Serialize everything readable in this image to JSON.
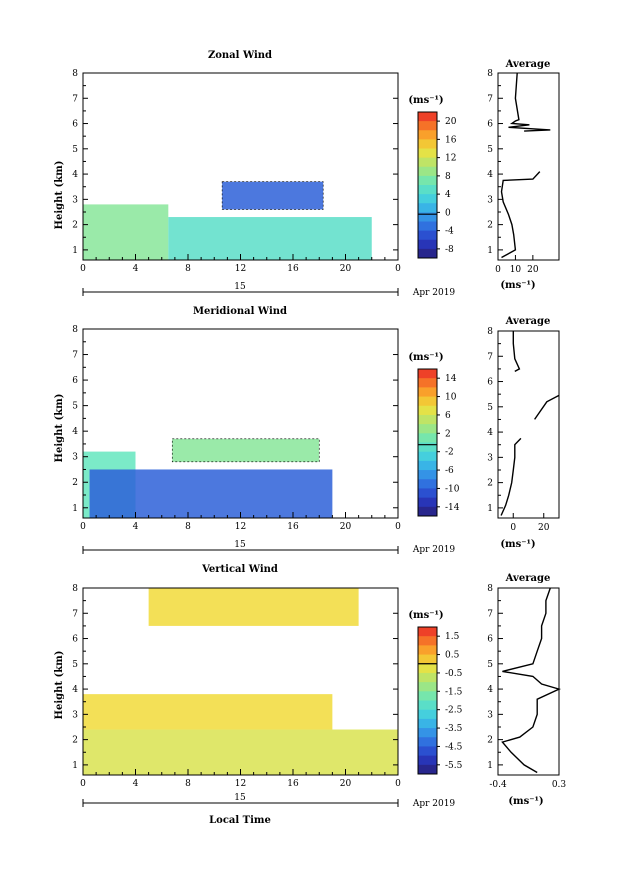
{
  "figure": {
    "date_label": "Apr 2019",
    "day_label": "15",
    "xlabel_bottom": "Local Time",
    "xticks": [
      "0",
      "4",
      "8",
      "12",
      "16",
      "20",
      "0"
    ],
    "yticks": [
      "1",
      "2",
      "3",
      "4",
      "5",
      "6",
      "7",
      "8"
    ],
    "unit_label": "(ms⁻¹)"
  },
  "chart_data": [
    {
      "type": "heatmap",
      "title": "Zonal Wind",
      "ylabel": "Height (km)",
      "xlim": [
        0,
        24
      ],
      "ylim": [
        0.6,
        8
      ],
      "colorbar": {
        "label": "(ms⁻¹)",
        "ticks": [
          20,
          16,
          12,
          8,
          4,
          0,
          -4,
          -8
        ],
        "range": [
          -10,
          22
        ]
      },
      "patches": [
        {
          "x": [
            10.6,
            18.3
          ],
          "y": [
            2.6,
            3.7
          ],
          "value": -4,
          "note": "contoured region"
        },
        {
          "x": [
            0.0,
            6.5
          ],
          "y": [
            0.6,
            2.8
          ],
          "value": 8
        },
        {
          "x": [
            6.5,
            22.0
          ],
          "y": [
            0.6,
            2.3
          ],
          "value": 5
        }
      ],
      "average": {
        "title": "Average",
        "xlabel": "(ms⁻¹)",
        "xticks": [
          "0",
          "10",
          "20"
        ],
        "xlim": [
          0,
          35
        ],
        "ylim": [
          0.6,
          8
        ],
        "profile": [
          {
            "x": 2,
            "y": 0.7
          },
          {
            "x": 10,
            "y": 1.0
          },
          {
            "x": 9,
            "y": 1.6
          },
          {
            "x": 8,
            "y": 2.0
          },
          {
            "x": 6,
            "y": 2.4
          },
          {
            "x": 3,
            "y": 2.9
          },
          {
            "x": 2,
            "y": 3.3
          },
          {
            "x": 3,
            "y": 3.75
          },
          {
            "x": 20,
            "y": 3.8
          },
          {
            "x": 24,
            "y": 4.1
          },
          {
            "x": null,
            "y": 4.3
          },
          {
            "x": 15,
            "y": 5.7
          },
          {
            "x": 30,
            "y": 5.75
          },
          {
            "x": 6,
            "y": 5.85
          },
          {
            "x": 18,
            "y": 5.95
          },
          {
            "x": 8,
            "y": 6.0
          },
          {
            "x": 10,
            "y": 6.1
          },
          {
            "x": 12,
            "y": 6.15
          },
          {
            "x": 10,
            "y": 7.0
          },
          {
            "x": 11,
            "y": 8.0
          }
        ]
      }
    },
    {
      "type": "heatmap",
      "title": "Meridional Wind",
      "ylabel": "Height (km)",
      "xlim": [
        0,
        24
      ],
      "ylim": [
        0.6,
        8
      ],
      "colorbar": {
        "label": "(ms⁻¹)",
        "ticks": [
          14,
          10,
          6,
          2,
          -2,
          -6,
          -10,
          -14
        ],
        "range": [
          -16,
          16
        ]
      },
      "patches": [
        {
          "x": [
            6.8,
            18.0
          ],
          "y": [
            2.8,
            3.7
          ],
          "value": 2,
          "note": "contoured region"
        },
        {
          "x": [
            0.0,
            4.0
          ],
          "y": [
            0.6,
            3.2
          ],
          "value": 0
        },
        {
          "x": [
            0.5,
            19.0
          ],
          "y": [
            0.6,
            2.5
          ],
          "value": -10
        }
      ],
      "average": {
        "title": "Average",
        "xlabel": "(ms⁻¹)",
        "xticks": [
          "0",
          "20"
        ],
        "xlim": [
          -10,
          30
        ],
        "ylim": [
          0.6,
          8
        ],
        "profile": [
          {
            "x": -8,
            "y": 0.7
          },
          {
            "x": -5,
            "y": 1.1
          },
          {
            "x": -3,
            "y": 1.5
          },
          {
            "x": -1,
            "y": 2.0
          },
          {
            "x": 0,
            "y": 2.5
          },
          {
            "x": 1,
            "y": 3.0
          },
          {
            "x": 1,
            "y": 3.5
          },
          {
            "x": 5,
            "y": 3.75
          },
          {
            "x": null,
            "y": 3.9
          },
          {
            "x": 14,
            "y": 4.5
          },
          {
            "x": 22,
            "y": 5.2
          },
          {
            "x": 30,
            "y": 5.45
          },
          {
            "x": null,
            "y": 5.6
          },
          {
            "x": 1,
            "y": 6.4
          },
          {
            "x": 4,
            "y": 6.5
          },
          {
            "x": 1,
            "y": 6.9
          },
          {
            "x": 0,
            "y": 7.5
          },
          {
            "x": 0,
            "y": 8.0
          }
        ]
      }
    },
    {
      "type": "heatmap",
      "title": "Vertical Wind",
      "ylabel": "Height (km)",
      "xlabel": "Local Time",
      "xlim": [
        0,
        24
      ],
      "ylim": [
        0.6,
        8
      ],
      "colorbar": {
        "label": "(ms⁻¹)",
        "ticks": [
          1.5,
          0.5,
          -0.5,
          -1.5,
          -2.5,
          -3.5,
          -4.5,
          -5.5
        ],
        "range": [
          -6,
          2
        ]
      },
      "patches": [
        {
          "x": [
            0.0,
            19.0
          ],
          "y": [
            2.4,
            3.8
          ],
          "value": 0.0
        },
        {
          "x": [
            0.0,
            24.0
          ],
          "y": [
            0.6,
            2.4
          ],
          "value": -0.4
        },
        {
          "x": [
            5.0,
            21.0
          ],
          "y": [
            6.5,
            8.0
          ],
          "value": 0.0
        }
      ],
      "average": {
        "title": "Average",
        "xlabel": "(ms⁻¹)",
        "xticks": [
          "-0.4",
          "0.3"
        ],
        "xlim": [
          -0.4,
          0.3
        ],
        "ylim": [
          0.6,
          8
        ],
        "profile": [
          {
            "x": 0.05,
            "y": 0.7
          },
          {
            "x": -0.1,
            "y": 1.0
          },
          {
            "x": -0.25,
            "y": 1.5
          },
          {
            "x": -0.35,
            "y": 1.9
          },
          {
            "x": -0.15,
            "y": 2.1
          },
          {
            "x": 0.0,
            "y": 2.5
          },
          {
            "x": 0.05,
            "y": 3.0
          },
          {
            "x": 0.05,
            "y": 3.6
          },
          {
            "x": 0.3,
            "y": 4.0
          },
          {
            "x": 0.1,
            "y": 4.2
          },
          {
            "x": 0.0,
            "y": 4.5
          },
          {
            "x": -0.35,
            "y": 4.7
          },
          {
            "x": 0.0,
            "y": 5.0
          },
          {
            "x": 0.05,
            "y": 5.5
          },
          {
            "x": 0.1,
            "y": 6.0
          },
          {
            "x": 0.1,
            "y": 6.5
          },
          {
            "x": 0.15,
            "y": 7.0
          },
          {
            "x": 0.15,
            "y": 7.5
          },
          {
            "x": 0.2,
            "y": 8.0
          }
        ]
      }
    }
  ]
}
